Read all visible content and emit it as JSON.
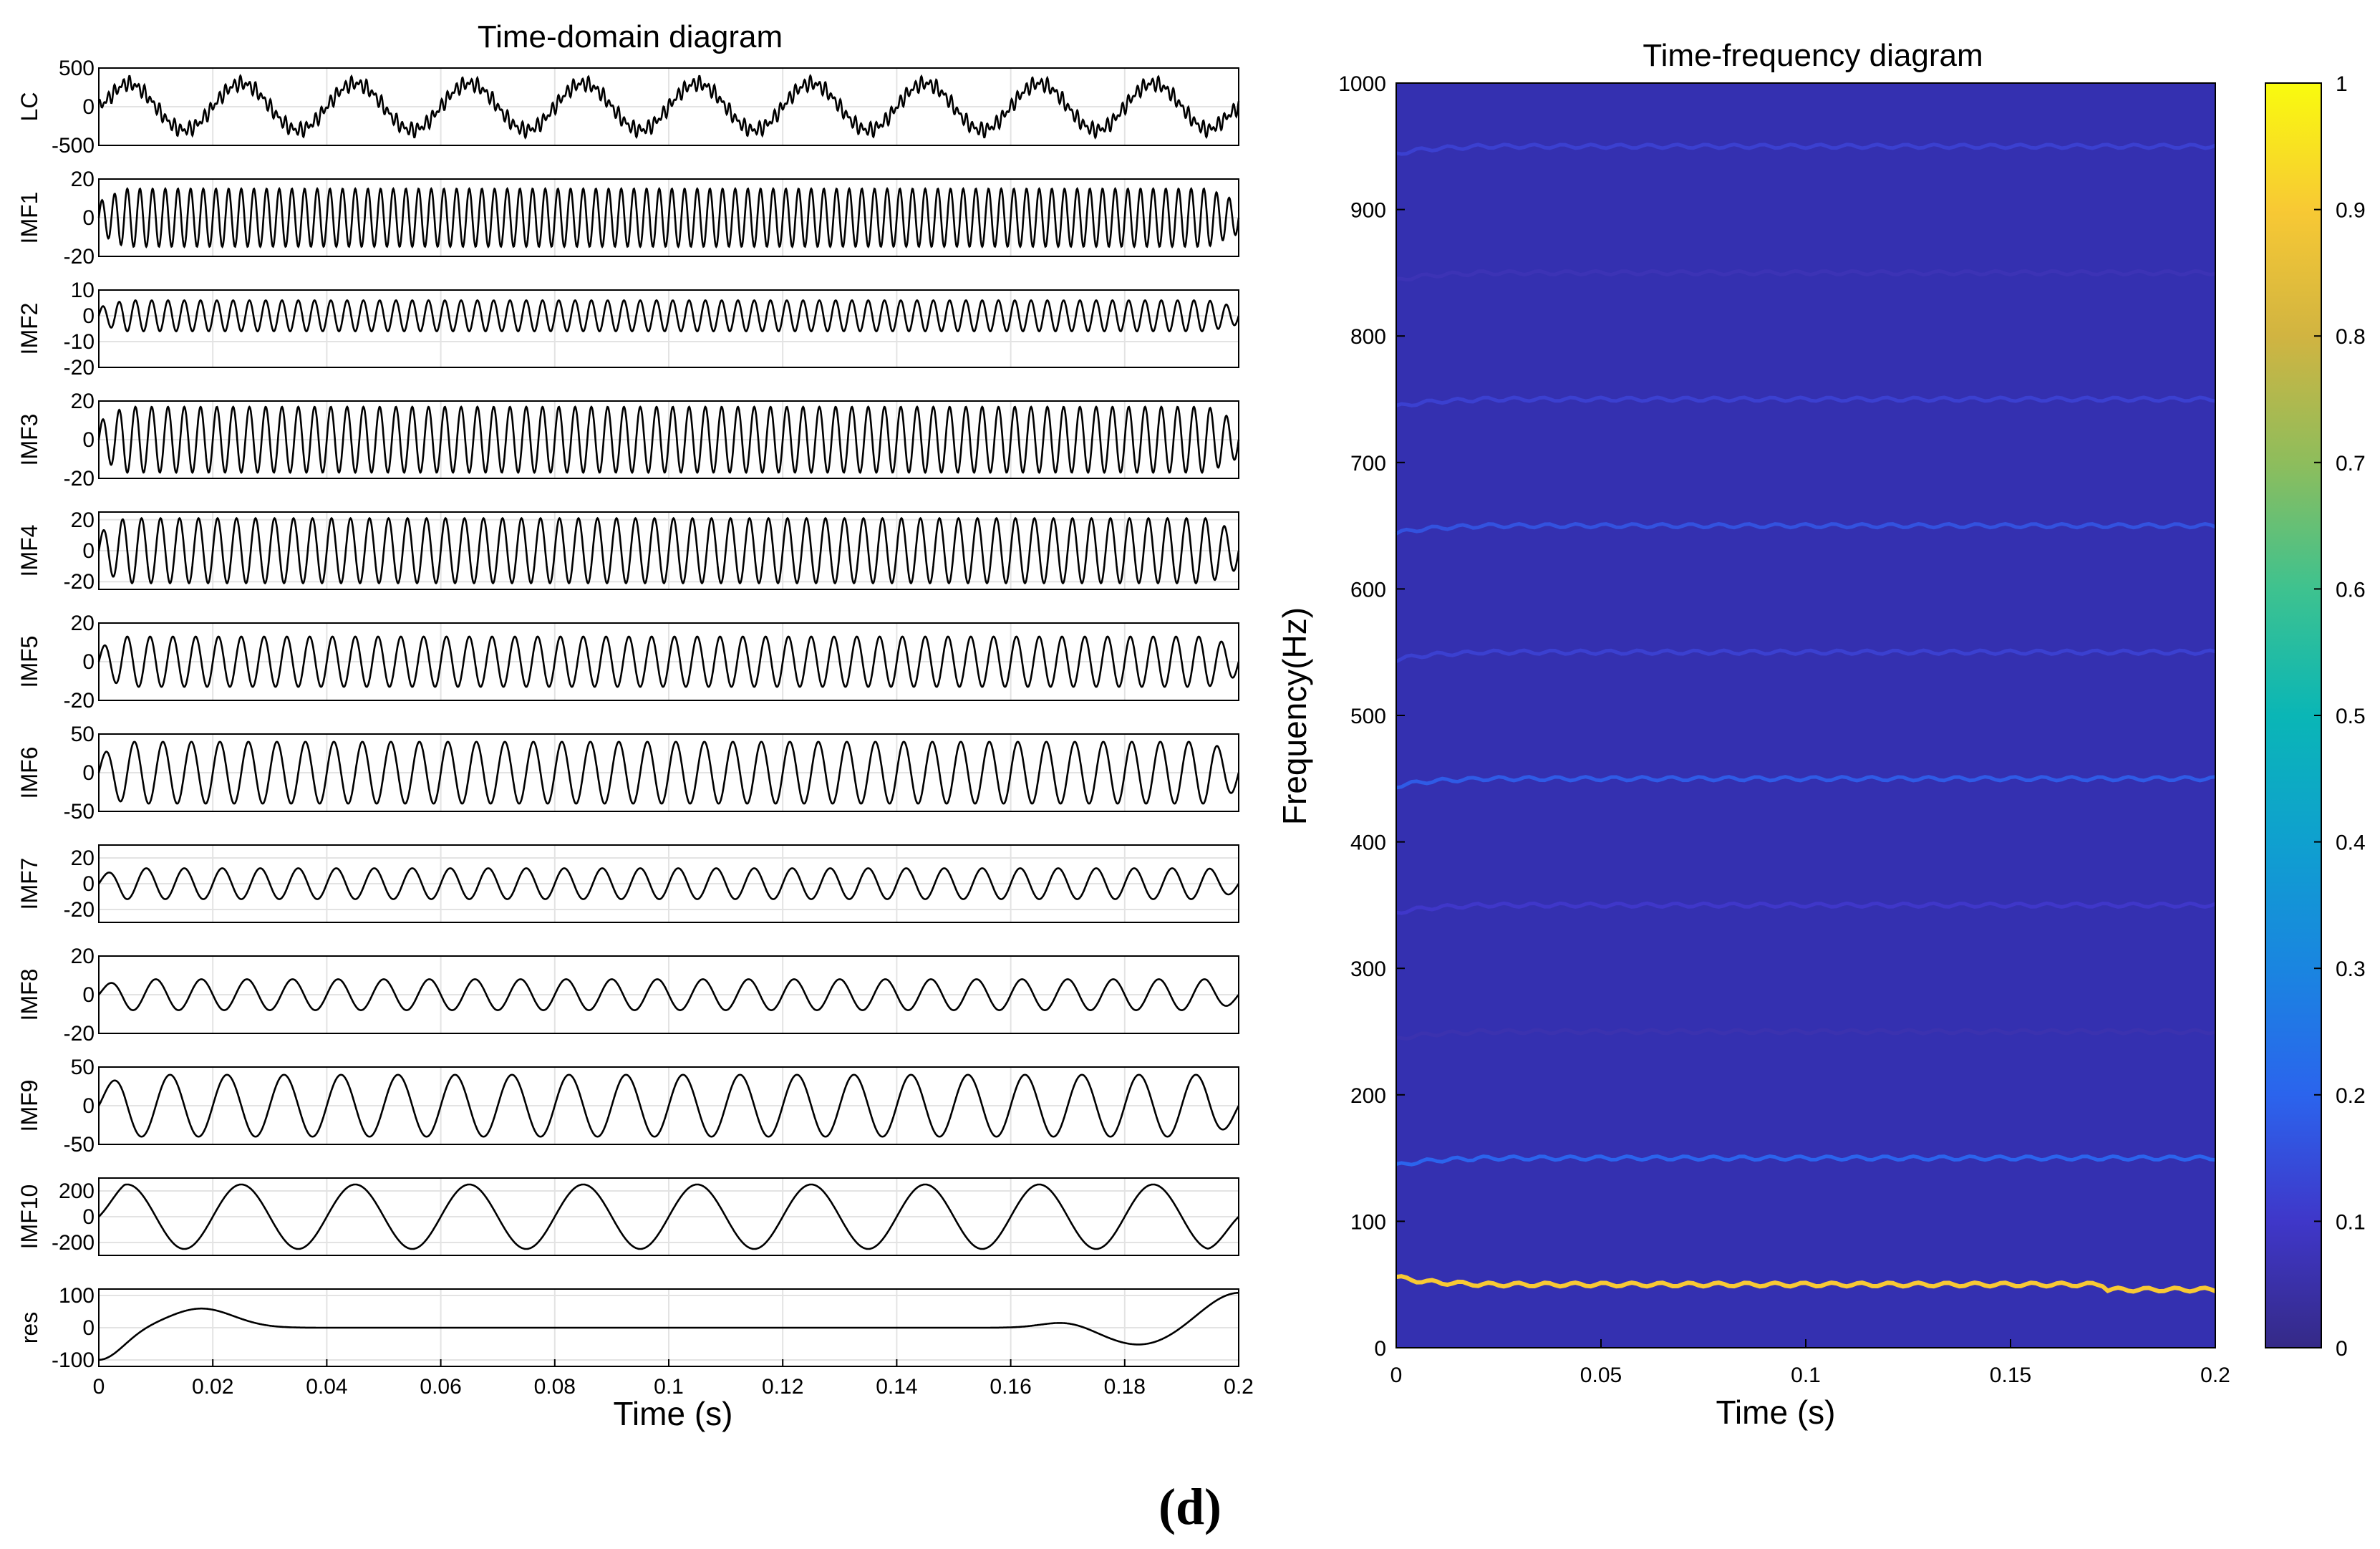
{
  "time_domain": {
    "title": "Time-domain diagram",
    "xlabel": "Time (s)",
    "xticks": [
      "0",
      "0.02",
      "0.04",
      "0.06",
      "0.08",
      "0.1",
      "0.12",
      "0.14",
      "0.16",
      "0.18",
      "0.2"
    ]
  },
  "time_frequency": {
    "title": "Time-frequency diagram",
    "xlabel": "Time (s)",
    "ylabel": "Frequency(Hz)",
    "xticks": [
      "0",
      "0.05",
      "0.1",
      "0.15",
      "0.2"
    ],
    "yticks": [
      "0",
      "100",
      "200",
      "300",
      "400",
      "500",
      "600",
      "700",
      "800",
      "900",
      "1000"
    ],
    "colorbar_ticks": [
      "0",
      "0.1",
      "0.2",
      "0.3",
      "0.4",
      "0.5",
      "0.6",
      "0.7",
      "0.8",
      "0.9",
      "1"
    ]
  },
  "panel_label": "(d)",
  "colors": {
    "background": "#3430b0",
    "line": "#000000",
    "frame": "#000000"
  },
  "chart_data": [
    {
      "type": "line",
      "title": "Time-domain diagram",
      "xlabel": "Time (s)",
      "xlim": [
        0,
        0.2
      ],
      "grid": true,
      "series": [
        {
          "name": "LC",
          "ylim": [
            -500,
            500
          ],
          "yticks": [
            "500",
            "0",
            "-500"
          ],
          "freq_hz": 50,
          "amplitude": 300,
          "noise": 0.35
        },
        {
          "name": "IMF1",
          "ylim": [
            -20,
            20
          ],
          "yticks": [
            "20",
            "0",
            "-20"
          ],
          "freq_hz": 450,
          "amplitude": 15,
          "noise": 0
        },
        {
          "name": "IMF2",
          "ylim": [
            -20,
            10
          ],
          "yticks": [
            "10",
            "0",
            "-10",
            "-20"
          ],
          "freq_hz": 350,
          "amplitude": 6,
          "noise": 0
        },
        {
          "name": "IMF3",
          "ylim": [
            -20,
            20
          ],
          "yticks": [
            "20",
            "0",
            "-20"
          ],
          "freq_hz": 350,
          "amplitude": 17,
          "noise": 0
        },
        {
          "name": "IMF4",
          "ylim": [
            -25,
            25
          ],
          "yticks": [
            "20",
            "0",
            "-20"
          ],
          "freq_hz": 300,
          "amplitude": 21,
          "noise": 0
        },
        {
          "name": "IMF5",
          "ylim": [
            -20,
            20
          ],
          "yticks": [
            "20",
            "0",
            "-20"
          ],
          "freq_hz": 250,
          "amplitude": 13,
          "noise": 0
        },
        {
          "name": "IMF6",
          "ylim": [
            -50,
            50
          ],
          "yticks": [
            "50",
            "0",
            "-50"
          ],
          "freq_hz": 200,
          "amplitude": 40,
          "noise": 0
        },
        {
          "name": "IMF7",
          "ylim": [
            -30,
            30
          ],
          "yticks": [
            "20",
            "0",
            "-20"
          ],
          "freq_hz": 150,
          "amplitude": 12,
          "noise": 0
        },
        {
          "name": "IMF8",
          "ylim": [
            -20,
            20
          ],
          "yticks": [
            "20",
            "0",
            "-20"
          ],
          "freq_hz": 125,
          "amplitude": 8,
          "noise": 0
        },
        {
          "name": "IMF9",
          "ylim": [
            -50,
            50
          ],
          "yticks": [
            "50",
            "0",
            "-50"
          ],
          "freq_hz": 100,
          "amplitude": 40,
          "noise": 0
        },
        {
          "name": "IMF10",
          "ylim": [
            -300,
            300
          ],
          "yticks": [
            "200",
            "0",
            "-200"
          ],
          "freq_hz": 50,
          "amplitude": 250,
          "noise": 0
        },
        {
          "name": "res",
          "ylim": [
            -120,
            120
          ],
          "yticks": [
            "100",
            "0",
            "-100"
          ],
          "freq_hz": 0,
          "amplitude": 0,
          "noise": 0
        }
      ]
    },
    {
      "type": "heatmap",
      "title": "Time-frequency diagram",
      "xlabel": "Time (s)",
      "ylabel": "Frequency(Hz)",
      "xlim": [
        0,
        0.2
      ],
      "ylim": [
        0,
        1000
      ],
      "clim": [
        0,
        1
      ],
      "ridges": [
        {
          "freq_hz": 50,
          "intensity": 0.9
        },
        {
          "freq_hz": 150,
          "intensity": 0.2
        },
        {
          "freq_hz": 250,
          "intensity": 0.06
        },
        {
          "freq_hz": 350,
          "intensity": 0.1
        },
        {
          "freq_hz": 450,
          "intensity": 0.18
        },
        {
          "freq_hz": 550,
          "intensity": 0.12
        },
        {
          "freq_hz": 650,
          "intensity": 0.16
        },
        {
          "freq_hz": 750,
          "intensity": 0.12
        },
        {
          "freq_hz": 850,
          "intensity": 0.07
        },
        {
          "freq_hz": 950,
          "intensity": 0.12
        }
      ]
    }
  ]
}
